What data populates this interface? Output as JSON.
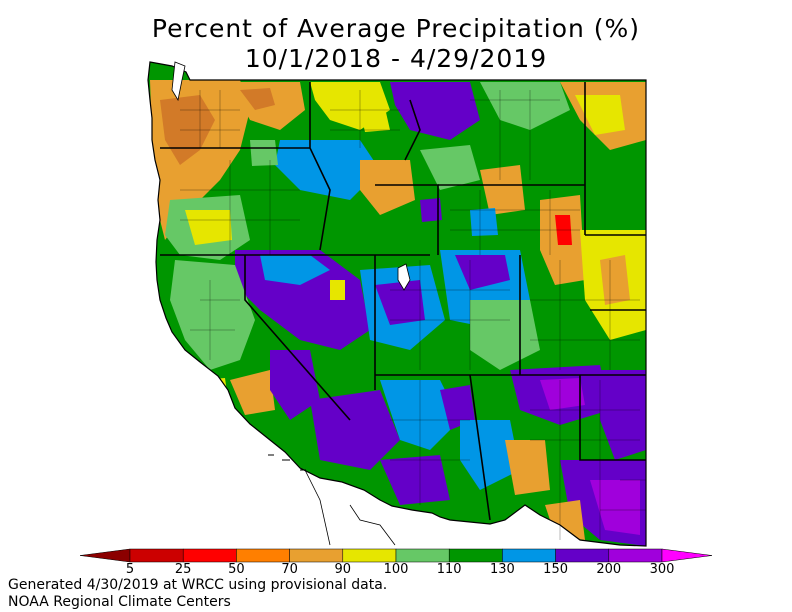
{
  "title": {
    "line1": "Percent of Average Precipitation (%)",
    "line2": "10/1/2018 - 4/29/2019"
  },
  "colorbar": {
    "labels": [
      "5",
      "25",
      "50",
      "70",
      "90",
      "100",
      "110",
      "130",
      "150",
      "200",
      "300"
    ],
    "colors": [
      "#8b0000",
      "#cc0000",
      "#ff0000",
      "#ff7f00",
      "#e8a030",
      "#e6e600",
      "#66c866",
      "#009600",
      "#0096e6",
      "#6400c8",
      "#a000dc",
      "#ff00ff"
    ]
  },
  "footer": {
    "line1": "Generated 4/30/2019 at WRCC using provisional data.",
    "line2": "NOAA Regional Climate Centers"
  },
  "palette": {
    "dry_dark": "#d27a28",
    "dry": "#e8a030",
    "normal": "#e6e600",
    "wet_light": "#66c866",
    "wet": "#009600",
    "wetter": "#0096e6",
    "very_wet": "#6400c8",
    "extreme": "#a000dc",
    "ocean": "#ffffff",
    "border": "#000000"
  }
}
